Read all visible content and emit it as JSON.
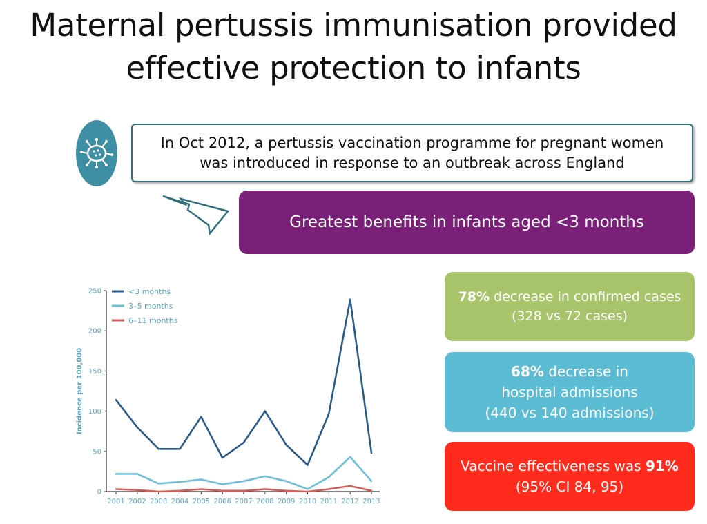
{
  "title": {
    "line1": "Maternal pertussis immunisation provided",
    "line2": "effective protection to infants"
  },
  "intro": {
    "icon": "pertussis-bacterium-icon",
    "line1": "In Oct 2012, a pertussis vaccination programme for pregnant women",
    "line2": "was introduced in response to an outbreak across England"
  },
  "banner": {
    "text": "Greatest benefits in infants aged <3 months"
  },
  "cards": {
    "cases": {
      "highlight": "78%",
      "text": " decrease in confirmed cases",
      "detail": "(328 vs 72 cases)"
    },
    "admissions": {
      "highlight": "68%",
      "text": " decrease in",
      "line2": "hospital admissions",
      "detail": "(440 vs 140 admissions)"
    },
    "effectiveness": {
      "text": "Vaccine effectiveness was ",
      "highlight": "91%",
      "detail": "(95% CI 84, 95)"
    }
  },
  "colors": {
    "banner": "#7b2078",
    "card_green": "#a7c46a",
    "card_blue": "#5cbcd4",
    "card_red": "#ff2b1c",
    "icon_circle": "#3e8fa3",
    "axis": "#5aa5c2"
  },
  "chart_data": {
    "type": "line",
    "title": "",
    "xlabel": "",
    "ylabel": "Incidence per 100,000",
    "x": [
      "2001",
      "2002",
      "2003",
      "2004",
      "2005",
      "2006",
      "2007",
      "2008",
      "2009",
      "2010",
      "2011",
      "2012",
      "2013"
    ],
    "ylim": [
      0,
      250
    ],
    "yticks": [
      0,
      50,
      100,
      150,
      200,
      250
    ],
    "grid": false,
    "legend": "top-left",
    "series": [
      {
        "name": "<3 months",
        "color": "#2b5a86",
        "values": [
          114,
          80,
          53,
          53,
          93,
          42,
          61,
          100,
          58,
          33,
          97,
          239,
          48
        ]
      },
      {
        "name": "3–5 months",
        "color": "#6cc0d8",
        "values": [
          22,
          22,
          10,
          12,
          15,
          9,
          13,
          19,
          13,
          3,
          18,
          43,
          13
        ]
      },
      {
        "name": "6–11 months",
        "color": "#d0605a",
        "values": [
          3,
          2,
          0,
          1,
          3,
          1,
          1,
          3,
          1,
          0,
          3,
          7,
          1
        ]
      }
    ]
  }
}
